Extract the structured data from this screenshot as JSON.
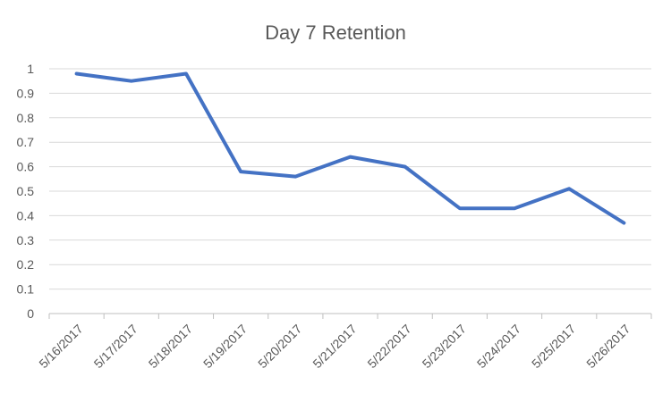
{
  "chart_data": {
    "type": "line",
    "title": "Day 7 Retention",
    "xlabel": "",
    "ylabel": "",
    "categories": [
      "5/16/2017",
      "5/17/2017",
      "5/18/2017",
      "5/19/2017",
      "5/20/2017",
      "5/21/2017",
      "5/22/2017",
      "5/23/2017",
      "5/24/2017",
      "5/25/2017",
      "5/26/2017"
    ],
    "series": [
      {
        "values": [
          0.98,
          0.95,
          0.98,
          0.58,
          0.56,
          0.64,
          0.6,
          0.43,
          0.43,
          0.51,
          0.37
        ],
        "color": "#4472c4"
      }
    ],
    "ylim": [
      0,
      1
    ],
    "yticks": [
      0,
      0.1,
      0.2,
      0.3,
      0.4,
      0.5,
      0.6,
      0.7,
      0.8,
      0.9,
      1
    ],
    "ytick_labels": [
      "0",
      "0.1",
      "0.2",
      "0.3",
      "0.4",
      "0.5",
      "0.6",
      "0.7",
      "0.8",
      "0.9",
      "1"
    ],
    "grid": true,
    "legend": "none"
  }
}
